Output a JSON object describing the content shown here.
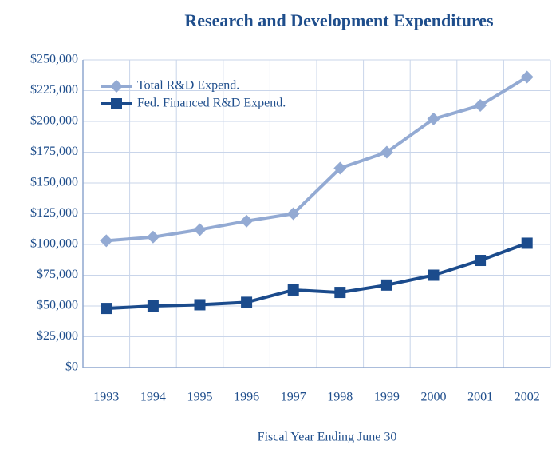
{
  "chart_data": {
    "type": "line",
    "title": "Research and Development Expenditures",
    "x_label": "Fiscal Year Ending June 30",
    "categories": [
      "1993",
      "1994",
      "1995",
      "1996",
      "1997",
      "1998",
      "1999",
      "2000",
      "2001",
      "2002"
    ],
    "series": [
      {
        "name": "Total R&D Expend.",
        "color": "#93aad3",
        "marker": "diamond",
        "values": [
          103000,
          106000,
          112000,
          119000,
          125000,
          162000,
          175000,
          202000,
          213000,
          236000
        ]
      },
      {
        "name": "Fed. Financed R&D Expend.",
        "color": "#1b4b8c",
        "marker": "square",
        "values": [
          48000,
          50000,
          51000,
          53000,
          63000,
          61000,
          67000,
          75000,
          87000,
          101000
        ]
      }
    ],
    "ylim": [
      0,
      250000
    ],
    "yticks": [
      {
        "value": 0,
        "label": "$0"
      },
      {
        "value": 25000,
        "label": "$25,000"
      },
      {
        "value": 50000,
        "label": "$50,000"
      },
      {
        "value": 75000,
        "label": "$75,000"
      },
      {
        "value": 100000,
        "label": "$100,000"
      },
      {
        "value": 125000,
        "label": "$125,000"
      },
      {
        "value": 150000,
        "label": "$150,000"
      },
      {
        "value": 175000,
        "label": "$175,000"
      },
      {
        "value": 200000,
        "label": "$200,000"
      },
      {
        "value": 225000,
        "label": "$225,000"
      },
      {
        "value": 250000,
        "label": "$250,000"
      }
    ],
    "grid": true,
    "legend": "upper left"
  }
}
